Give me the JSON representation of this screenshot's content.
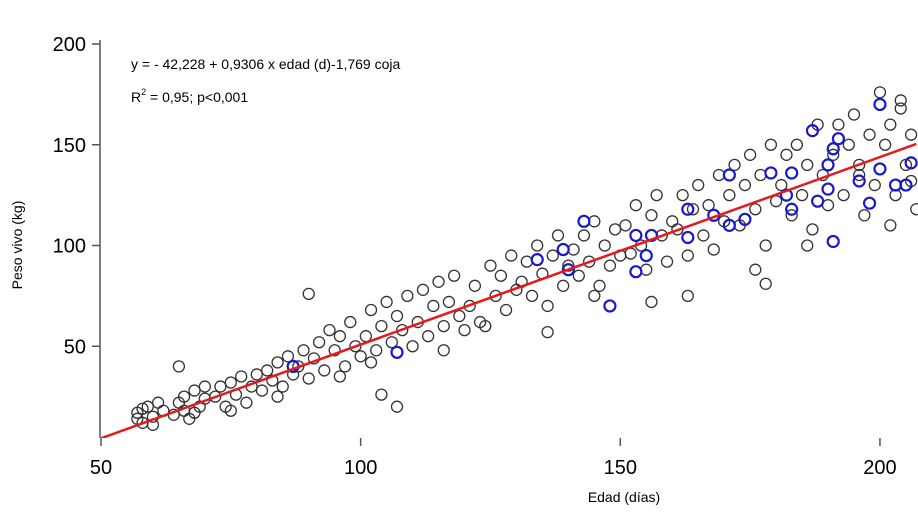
{
  "chart_data": {
    "type": "scatter",
    "xlabel": "Edad (días)",
    "ylabel": "Peso vivo (kg)",
    "xlim": [
      50,
      207
    ],
    "ylim": [
      4,
      200
    ],
    "xticks": [
      50,
      100,
      150,
      200
    ],
    "yticks": [
      50,
      100,
      150,
      200
    ],
    "grid": false,
    "annotations": {
      "equation": "y = - 42,228 + 0,9306 x edad (d)-1,769 coja",
      "r2_prefix": "R",
      "r2_sup": "2",
      "r2_rest": " = 0,95; p<0,001"
    },
    "regression": {
      "intercept": -42.228,
      "slope": 0.9306,
      "color": "#e8191c"
    },
    "series": [
      {
        "key": "sanos",
        "color": "#333333",
        "points": [
          [
            57,
            14
          ],
          [
            57,
            17
          ],
          [
            58,
            12
          ],
          [
            59,
            20
          ],
          [
            60,
            15
          ],
          [
            61,
            22
          ],
          [
            62,
            18
          ],
          [
            60,
            11
          ],
          [
            58,
            19
          ],
          [
            64,
            16
          ],
          [
            65,
            22
          ],
          [
            66,
            25
          ],
          [
            67,
            14
          ],
          [
            68,
            28
          ],
          [
            69,
            20
          ],
          [
            70,
            24
          ],
          [
            66,
            18
          ],
          [
            68,
            17
          ],
          [
            70,
            30
          ],
          [
            65,
            40
          ],
          [
            72,
            25
          ],
          [
            73,
            30
          ],
          [
            74,
            20
          ],
          [
            75,
            32
          ],
          [
            76,
            26
          ],
          [
            77,
            35
          ],
          [
            78,
            22
          ],
          [
            79,
            30
          ],
          [
            80,
            36
          ],
          [
            75,
            18
          ],
          [
            81,
            28
          ],
          [
            82,
            38
          ],
          [
            83,
            33
          ],
          [
            84,
            42
          ],
          [
            85,
            30
          ],
          [
            86,
            45
          ],
          [
            87,
            36
          ],
          [
            88,
            40
          ],
          [
            89,
            48
          ],
          [
            90,
            34
          ],
          [
            84,
            25
          ],
          [
            90,
            76
          ],
          [
            91,
            44
          ],
          [
            92,
            52
          ],
          [
            93,
            38
          ],
          [
            94,
            58
          ],
          [
            95,
            48
          ],
          [
            96,
            55
          ],
          [
            97,
            40
          ],
          [
            98,
            62
          ],
          [
            99,
            50
          ],
          [
            100,
            45
          ],
          [
            96,
            35
          ],
          [
            101,
            55
          ],
          [
            102,
            68
          ],
          [
            103,
            48
          ],
          [
            104,
            60
          ],
          [
            105,
            72
          ],
          [
            106,
            52
          ],
          [
            107,
            65
          ],
          [
            108,
            58
          ],
          [
            109,
            75
          ],
          [
            110,
            50
          ],
          [
            102,
            42
          ],
          [
            104,
            26
          ],
          [
            107,
            20
          ],
          [
            111,
            62
          ],
          [
            112,
            78
          ],
          [
            113,
            55
          ],
          [
            114,
            70
          ],
          [
            115,
            82
          ],
          [
            116,
            60
          ],
          [
            117,
            72
          ],
          [
            118,
            85
          ],
          [
            119,
            65
          ],
          [
            120,
            58
          ],
          [
            116,
            48
          ],
          [
            121,
            70
          ],
          [
            122,
            80
          ],
          [
            123,
            62
          ],
          [
            125,
            90
          ],
          [
            126,
            75
          ],
          [
            127,
            85
          ],
          [
            128,
            68
          ],
          [
            129,
            95
          ],
          [
            130,
            78
          ],
          [
            124,
            60
          ],
          [
            131,
            82
          ],
          [
            132,
            92
          ],
          [
            133,
            75
          ],
          [
            134,
            100
          ],
          [
            135,
            86
          ],
          [
            136,
            70
          ],
          [
            137,
            95
          ],
          [
            138,
            105
          ],
          [
            139,
            80
          ],
          [
            140,
            90
          ],
          [
            136,
            57
          ],
          [
            141,
            98
          ],
          [
            142,
            85
          ],
          [
            143,
            105
          ],
          [
            144,
            92
          ],
          [
            145,
            112
          ],
          [
            146,
            80
          ],
          [
            147,
            100
          ],
          [
            148,
            90
          ],
          [
            149,
            108
          ],
          [
            150,
            95
          ],
          [
            145,
            75
          ],
          [
            151,
            110
          ],
          [
            152,
            96
          ],
          [
            153,
            120
          ],
          [
            154,
            100
          ],
          [
            155,
            88
          ],
          [
            156,
            115
          ],
          [
            157,
            125
          ],
          [
            158,
            105
          ],
          [
            159,
            92
          ],
          [
            160,
            112
          ],
          [
            156,
            72
          ],
          [
            161,
            108
          ],
          [
            162,
            125
          ],
          [
            163,
            95
          ],
          [
            164,
            118
          ],
          [
            165,
            130
          ],
          [
            166,
            105
          ],
          [
            167,
            120
          ],
          [
            168,
            98
          ],
          [
            169,
            135
          ],
          [
            170,
            112
          ],
          [
            163,
            75
          ],
          [
            171,
            125
          ],
          [
            172,
            140
          ],
          [
            173,
            110
          ],
          [
            174,
            130
          ],
          [
            175,
            145
          ],
          [
            176,
            118
          ],
          [
            177,
            135
          ],
          [
            178,
            100
          ],
          [
            179,
            150
          ],
          [
            180,
            122
          ],
          [
            176,
            88
          ],
          [
            178,
            81
          ],
          [
            181,
            130
          ],
          [
            182,
            145
          ],
          [
            183,
            115
          ],
          [
            184,
            150
          ],
          [
            185,
            125
          ],
          [
            186,
            140
          ],
          [
            187,
            108
          ],
          [
            188,
            160
          ],
          [
            189,
            135
          ],
          [
            190,
            120
          ],
          [
            186,
            100
          ],
          [
            191,
            145
          ],
          [
            192,
            160
          ],
          [
            193,
            125
          ],
          [
            194,
            150
          ],
          [
            195,
            165
          ],
          [
            196,
            135
          ],
          [
            197,
            115
          ],
          [
            198,
            155
          ],
          [
            199,
            130
          ],
          [
            200,
            176
          ],
          [
            196,
            140
          ],
          [
            201,
            150
          ],
          [
            202,
            160
          ],
          [
            203,
            125
          ],
          [
            204,
            168
          ],
          [
            205,
            140
          ],
          [
            206,
            155
          ],
          [
            207,
            118
          ],
          [
            202,
            110
          ],
          [
            204,
            172
          ],
          [
            206,
            132
          ]
        ]
      },
      {
        "key": "coja",
        "color": "#1a1acc",
        "points": [
          [
            87,
            40
          ],
          [
            107,
            47
          ],
          [
            134,
            93
          ],
          [
            139,
            98
          ],
          [
            140,
            88
          ],
          [
            143,
            112
          ],
          [
            148,
            70
          ],
          [
            153,
            105
          ],
          [
            153,
            87
          ],
          [
            155,
            95
          ],
          [
            156,
            105
          ],
          [
            163,
            118
          ],
          [
            163,
            104
          ],
          [
            168,
            115
          ],
          [
            171,
            135
          ],
          [
            171,
            110
          ],
          [
            174,
            113
          ],
          [
            179,
            136
          ],
          [
            182,
            125
          ],
          [
            183,
            136
          ],
          [
            183,
            118
          ],
          [
            187,
            157
          ],
          [
            188,
            122
          ],
          [
            190,
            128
          ],
          [
            190,
            140
          ],
          [
            191,
            102
          ],
          [
            191,
            148
          ],
          [
            192,
            153
          ],
          [
            196,
            132
          ],
          [
            198,
            121
          ],
          [
            200,
            170
          ],
          [
            200,
            138
          ],
          [
            203,
            130
          ],
          [
            205,
            130
          ],
          [
            206,
            141
          ]
        ]
      }
    ]
  }
}
